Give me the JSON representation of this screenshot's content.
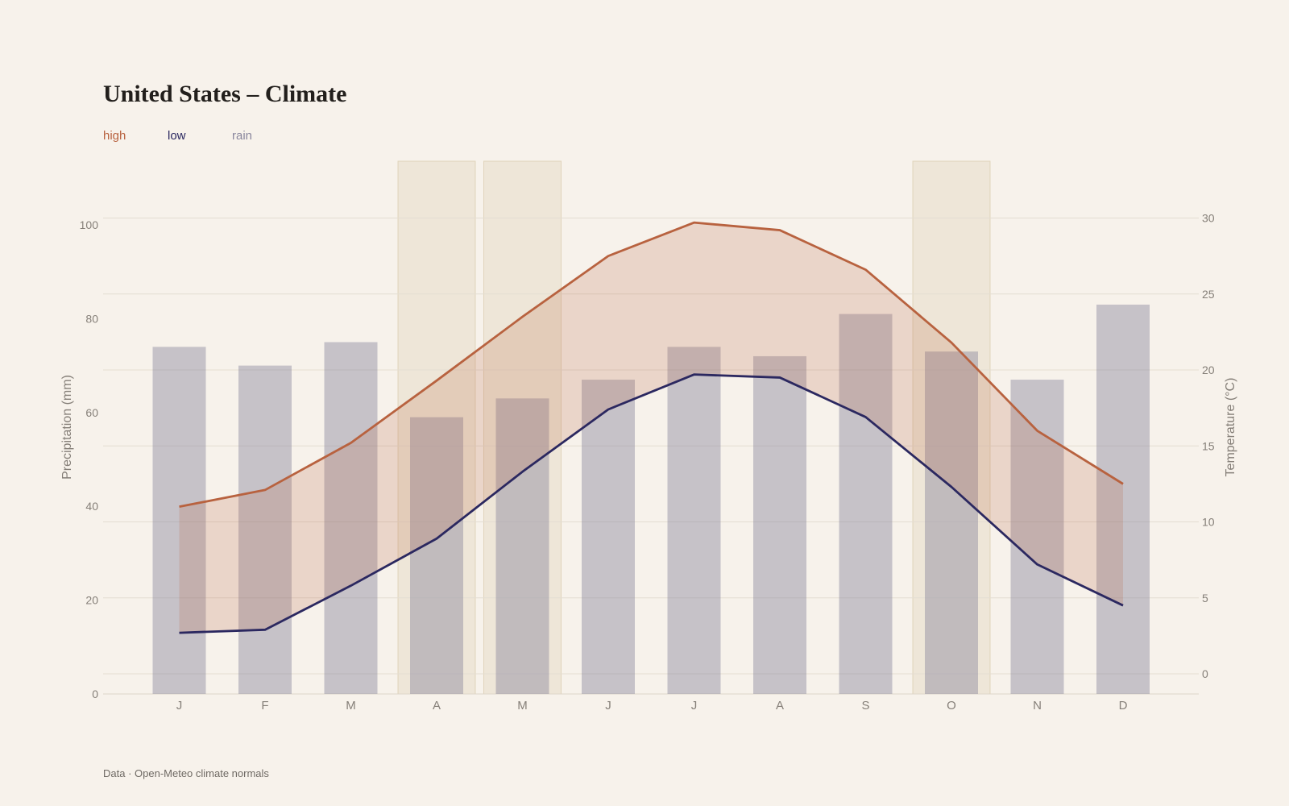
{
  "title": "United States – Climate",
  "legend": [
    {
      "key": "high",
      "label": "high",
      "color": "#b8623f"
    },
    {
      "key": "low",
      "label": "low",
      "color": "#2b2860"
    },
    {
      "key": "rain",
      "label": "rain",
      "color": "#8a879e"
    }
  ],
  "footer": "Data · Open-Meteo climate normals",
  "chart_data": {
    "type": "bar",
    "categories": [
      "J",
      "F",
      "M",
      "A",
      "M",
      "J",
      "J",
      "A",
      "S",
      "O",
      "N",
      "D"
    ],
    "y_left": {
      "label": "Precipitation (mm)",
      "ticks": [
        0,
        20,
        40,
        60,
        80,
        100
      ],
      "lim": [
        0,
        100
      ]
    },
    "y_right": {
      "label": "Temperature (°C)",
      "ticks": [
        0,
        5,
        10,
        15,
        20,
        25,
        30
      ],
      "lim": [
        0,
        30
      ]
    },
    "series": [
      {
        "name": "rain",
        "type": "bar",
        "axis": "left",
        "values": [
          74,
          70,
          75,
          59,
          63,
          67,
          74,
          72,
          81,
          73,
          67,
          83
        ]
      },
      {
        "name": "high",
        "type": "line",
        "axis": "right",
        "values": [
          11.0,
          12.1,
          15.2,
          19.3,
          23.5,
          27.5,
          29.7,
          29.2,
          26.6,
          21.8,
          16.0,
          12.5
        ]
      },
      {
        "name": "low",
        "type": "line",
        "axis": "right",
        "values": [
          2.7,
          2.9,
          5.8,
          8.9,
          13.3,
          17.4,
          19.7,
          19.5,
          16.9,
          12.3,
          7.2,
          4.5
        ]
      }
    ],
    "highlight_months": [
      3,
      4,
      9
    ],
    "band_between": [
      "low",
      "high"
    ],
    "grid": true,
    "legend_position": "top-left"
  }
}
